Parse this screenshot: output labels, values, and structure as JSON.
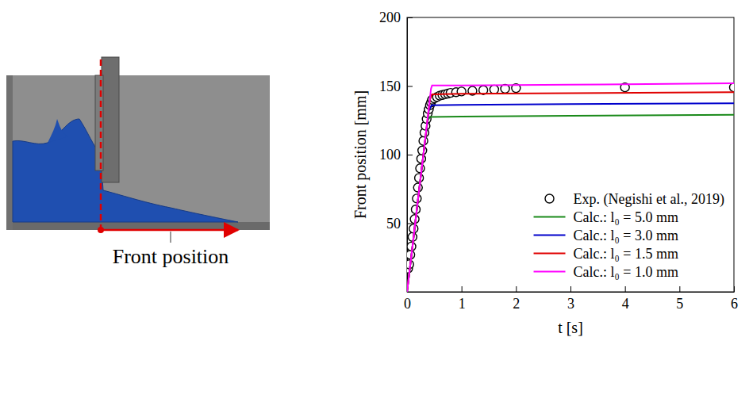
{
  "chart_data": {
    "type": "line",
    "xlabel": "t [s]",
    "ylabel": "Front position [mm]",
    "xlim": [
      0,
      6
    ],
    "xticks": [
      0,
      1,
      2,
      3,
      4,
      5,
      6
    ],
    "ylim": [
      0,
      200
    ],
    "yticks": [
      50,
      100,
      150,
      200
    ],
    "legend": "lower right",
    "series": [
      {
        "name": "Exp. (Negishi et al., 2019)",
        "type": "scatter",
        "marker": "circle",
        "color": "#000000",
        "x": [
          0.02,
          0.04,
          0.06,
          0.08,
          0.1,
          0.12,
          0.14,
          0.16,
          0.18,
          0.2,
          0.22,
          0.24,
          0.26,
          0.28,
          0.3,
          0.32,
          0.34,
          0.36,
          0.38,
          0.4,
          0.42,
          0.44,
          0.46,
          0.5,
          0.55,
          0.6,
          0.65,
          0.7,
          0.75,
          0.8,
          0.9,
          1.0,
          1.2,
          1.4,
          1.6,
          1.8,
          2.0,
          4.0,
          6.0
        ],
        "values": [
          17,
          20,
          27,
          33,
          40,
          46,
          53,
          60,
          68,
          76,
          83,
          90,
          97,
          103,
          110,
          116,
          121,
          126,
          130,
          133,
          136,
          138,
          140,
          141,
          142,
          143,
          143.5,
          144,
          144.5,
          145,
          145.5,
          146,
          146.5,
          147,
          147.5,
          148,
          148.5,
          149,
          149
        ]
      },
      {
        "name": "Calc.: l₀ = 5.0 mm",
        "type": "line",
        "color": "#1a8a1a",
        "x": [
          0,
          0.1,
          0.2,
          0.3,
          0.38,
          0.42,
          1,
          3,
          6
        ],
        "values": [
          0,
          33,
          67,
          100,
          125,
          127.5,
          127.8,
          128.3,
          129
        ]
      },
      {
        "name": "Calc.: l₀ = 3.0 mm",
        "type": "line",
        "color": "#0000cc",
        "x": [
          0,
          0.1,
          0.2,
          0.3,
          0.4,
          0.45,
          1,
          3,
          6
        ],
        "values": [
          0,
          33,
          67,
          100,
          132,
          136,
          136.3,
          136.8,
          137.5
        ]
      },
      {
        "name": "Calc.: l₀ = 1.5 mm",
        "type": "line",
        "color": "#e00000",
        "x": [
          0,
          0.1,
          0.2,
          0.3,
          0.42,
          0.46,
          1,
          3,
          6
        ],
        "values": [
          0,
          33,
          67,
          100,
          140,
          144,
          144.3,
          144.8,
          145.5
        ]
      },
      {
        "name": "Calc.: l₀ = 1.0 mm",
        "type": "line",
        "color": "#ff00ff",
        "x": [
          0,
          0.1,
          0.2,
          0.3,
          0.44,
          0.46,
          1,
          3,
          6
        ],
        "values": [
          0,
          33,
          67,
          100,
          148,
          150.5,
          150.5,
          151,
          152
        ]
      }
    ]
  },
  "illustration": {
    "label": "Front position"
  }
}
